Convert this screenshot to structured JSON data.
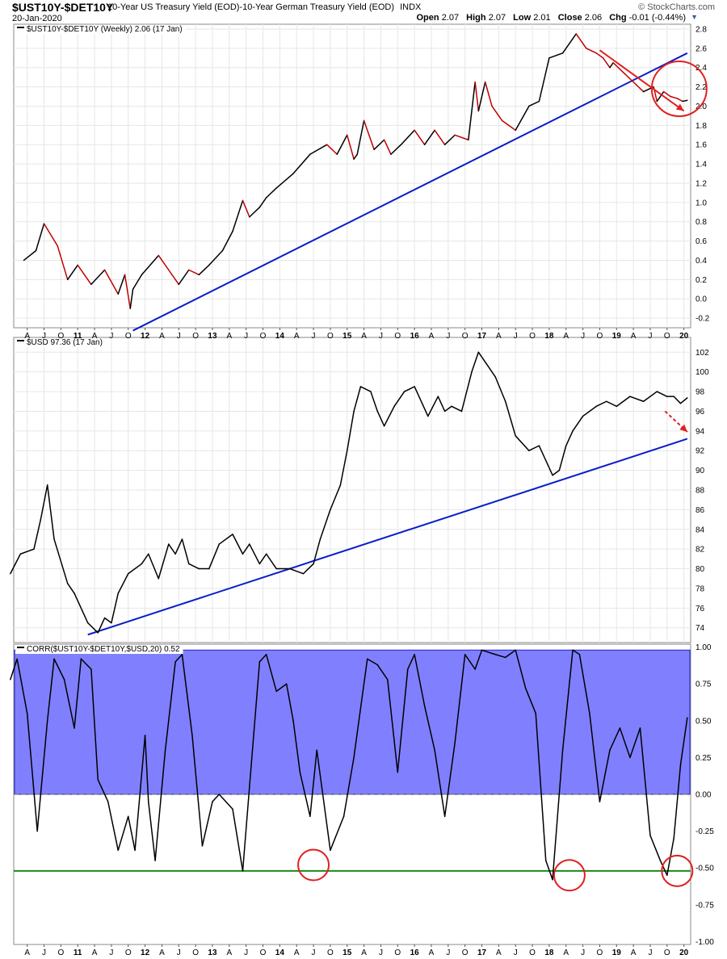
{
  "header": {
    "symbol": "$UST10Y-$DET10Y",
    "description": "10-Year US Treasury Yield (EOD)-10-Year German Treasury Yield (EOD)",
    "exchange": "INDX",
    "date": "20-Jan-2020",
    "credit": "© StockCharts.com",
    "open_label": "Open",
    "open": "2.07",
    "high_label": "High",
    "high": "2.07",
    "low_label": "Low",
    "low": "2.01",
    "close_label": "Close",
    "close": "2.06",
    "chg_label": "Chg",
    "chg": "-0.01 (-0.44%)"
  },
  "colors": {
    "price_line": "#000000",
    "down_segments": "#c00000",
    "trendline": "#0a1ec8",
    "corr_band": "#8080ff",
    "corr_band_border": "#2020d0",
    "support_line": "#1a8a1a",
    "annotation": "#e02020",
    "axis_text": "#000000",
    "grid": "#e6e6e6"
  },
  "chart_data": [
    {
      "type": "line",
      "legend": "$UST10Y-$DET10Y (Weekly) 2.06 (17 Jan)",
      "ylim": [
        -0.3,
        2.85
      ],
      "yticks": [
        -0.2,
        0.0,
        0.2,
        0.4,
        0.6,
        0.8,
        1.0,
        1.2,
        1.4,
        1.6,
        1.8,
        2.0,
        2.2,
        2.4,
        2.6,
        2.8
      ],
      "ytick_labels": [
        "-0.2",
        "0.0",
        "0.2",
        "0.4",
        "0.6",
        "0.8",
        "1.0",
        "1.2",
        "1.4",
        "1.6",
        "1.8",
        "2.0",
        "2.2",
        "2.4",
        "2.6",
        "2.8"
      ],
      "x": [
        2010.2,
        2010.38,
        2010.5,
        2010.7,
        2010.85,
        2011.0,
        2011.2,
        2011.4,
        2011.6,
        2011.7,
        2011.78,
        2011.82,
        2011.95,
        2012.2,
        2012.35,
        2012.5,
        2012.65,
        2012.8,
        2012.95,
        2013.15,
        2013.3,
        2013.45,
        2013.55,
        2013.7,
        2013.8,
        2013.95,
        2014.2,
        2014.45,
        2014.7,
        2014.85,
        2015.0,
        2015.1,
        2015.15,
        2015.25,
        2015.4,
        2015.55,
        2015.65,
        2015.8,
        2016.0,
        2016.15,
        2016.3,
        2016.45,
        2016.6,
        2016.8,
        2016.9,
        2016.95,
        2017.05,
        2017.15,
        2017.3,
        2017.5,
        2017.7,
        2017.85,
        2018.0,
        2018.2,
        2018.4,
        2018.55,
        2018.7,
        2018.8,
        2018.9,
        2018.95,
        2019.1,
        2019.25,
        2019.4,
        2019.55,
        2019.6,
        2019.7,
        2019.8,
        2019.9,
        2019.98,
        2020.05
      ],
      "y": [
        0.4,
        0.5,
        0.78,
        0.55,
        0.2,
        0.35,
        0.15,
        0.3,
        0.05,
        0.25,
        -0.1,
        0.1,
        0.25,
        0.45,
        0.3,
        0.15,
        0.3,
        0.25,
        0.35,
        0.5,
        0.7,
        1.02,
        0.85,
        0.95,
        1.05,
        1.15,
        1.3,
        1.5,
        1.6,
        1.5,
        1.7,
        1.45,
        1.5,
        1.85,
        1.55,
        1.65,
        1.5,
        1.6,
        1.75,
        1.6,
        1.75,
        1.6,
        1.7,
        1.65,
        2.25,
        1.95,
        2.25,
        2.0,
        1.85,
        1.75,
        2.0,
        2.05,
        2.5,
        2.55,
        2.75,
        2.6,
        2.55,
        2.5,
        2.4,
        2.45,
        2.35,
        2.25,
        2.15,
        2.2,
        2.05,
        2.15,
        2.1,
        2.08,
        2.05,
        2.06
      ],
      "trendline": {
        "x": [
          2011.82,
          2020.05
        ],
        "y": [
          -0.33,
          2.55
        ]
      },
      "arrow": {
        "x": [
          2018.75,
          2020.0
        ],
        "y": [
          2.58,
          1.95
        ]
      },
      "circle": {
        "x": 2019.93,
        "y": 2.18
      }
    },
    {
      "type": "line",
      "legend": "$USD 97.36 (17 Jan)",
      "ylim": [
        72.5,
        103.5
      ],
      "yticks": [
        74,
        76,
        78,
        80,
        82,
        84,
        86,
        88,
        90,
        92,
        94,
        96,
        98,
        100,
        102
      ],
      "ytick_labels": [
        "74",
        "76",
        "78",
        "80",
        "82",
        "84",
        "86",
        "88",
        "90",
        "92",
        "94",
        "96",
        "98",
        "100",
        "102"
      ],
      "x": [
        2010.0,
        2010.15,
        2010.35,
        2010.45,
        2010.55,
        2010.65,
        2010.85,
        2010.95,
        2011.15,
        2011.3,
        2011.4,
        2011.5,
        2011.6,
        2011.75,
        2011.95,
        2012.05,
        2012.2,
        2012.35,
        2012.45,
        2012.55,
        2012.65,
        2012.8,
        2012.95,
        2013.1,
        2013.3,
        2013.45,
        2013.55,
        2013.7,
        2013.8,
        2013.95,
        2014.15,
        2014.35,
        2014.5,
        2014.6,
        2014.75,
        2014.9,
        2015.0,
        2015.1,
        2015.2,
        2015.35,
        2015.45,
        2015.55,
        2015.7,
        2015.85,
        2016.0,
        2016.2,
        2016.35,
        2016.45,
        2016.55,
        2016.7,
        2016.85,
        2016.95,
        2017.05,
        2017.2,
        2017.35,
        2017.5,
        2017.7,
        2017.85,
        2018.05,
        2018.15,
        2018.25,
        2018.35,
        2018.5,
        2018.7,
        2018.85,
        2019.0,
        2019.2,
        2019.4,
        2019.6,
        2019.75,
        2019.85,
        2019.95,
        2020.05
      ],
      "y": [
        79.5,
        81.5,
        82.0,
        85.0,
        88.5,
        83.0,
        78.5,
        77.5,
        74.5,
        73.5,
        75.0,
        74.5,
        77.5,
        79.5,
        80.5,
        81.5,
        79.0,
        82.5,
        81.5,
        83.0,
        80.5,
        80.0,
        80.0,
        82.5,
        83.5,
        81.5,
        82.5,
        80.5,
        81.5,
        80.0,
        80.0,
        79.5,
        80.5,
        83.0,
        86.0,
        88.5,
        92.0,
        96.0,
        98.5,
        98.0,
        96.0,
        94.5,
        96.5,
        98.0,
        98.5,
        95.5,
        97.5,
        96.0,
        96.5,
        96.0,
        100.0,
        102.0,
        101.0,
        99.5,
        97.0,
        93.5,
        92.0,
        92.5,
        89.5,
        90.0,
        92.5,
        94.0,
        95.5,
        96.5,
        97.0,
        96.5,
        97.5,
        97.0,
        98.0,
        97.5,
        97.5,
        96.8,
        97.36
      ],
      "trendline": {
        "x": [
          2011.15,
          2020.05
        ],
        "y": [
          73.3,
          93.2
        ]
      },
      "arrow": {
        "x": [
          2019.72,
          2020.05
        ],
        "y": [
          96.0,
          93.9
        ]
      }
    },
    {
      "type": "line",
      "legend": "CORR($UST10Y-$DET10Y,$USD,20) 0.52",
      "ylim": [
        -1.02,
        1.02
      ],
      "yticks": [
        -1.0,
        -0.75,
        -0.5,
        -0.25,
        0.0,
        0.25,
        0.5,
        0.75,
        1.0
      ],
      "ytick_labels": [
        "-1.00",
        "-0.75",
        "-0.50",
        "-0.25",
        "0.00",
        "0.25",
        "0.50",
        "0.75",
        "1.00"
      ],
      "band": [
        0.0,
        0.98
      ],
      "support_level": -0.52,
      "x": [
        2010.0,
        2010.1,
        2010.25,
        2010.4,
        2010.55,
        2010.65,
        2010.8,
        2010.95,
        2011.05,
        2011.2,
        2011.3,
        2011.45,
        2011.6,
        2011.75,
        2011.85,
        2012.0,
        2012.05,
        2012.15,
        2012.3,
        2012.45,
        2012.55,
        2012.7,
        2012.85,
        2013.0,
        2013.1,
        2013.3,
        2013.45,
        2013.55,
        2013.7,
        2013.8,
        2013.95,
        2014.1,
        2014.2,
        2014.3,
        2014.45,
        2014.55,
        2014.75,
        2014.95,
        2015.1,
        2015.3,
        2015.45,
        2015.6,
        2015.75,
        2015.9,
        2016.0,
        2016.15,
        2016.3,
        2016.45,
        2016.6,
        2016.75,
        2016.9,
        2017.0,
        2017.2,
        2017.35,
        2017.5,
        2017.65,
        2017.8,
        2017.95,
        2018.05,
        2018.2,
        2018.35,
        2018.45,
        2018.6,
        2018.75,
        2018.9,
        2019.05,
        2019.2,
        2019.35,
        2019.5,
        2019.65,
        2019.75,
        2019.85,
        2019.95,
        2020.05
      ],
      "y": [
        0.78,
        0.92,
        0.55,
        -0.25,
        0.5,
        0.92,
        0.78,
        0.45,
        0.92,
        0.85,
        0.1,
        -0.05,
        -0.38,
        -0.15,
        -0.38,
        0.4,
        -0.05,
        -0.45,
        0.3,
        0.9,
        0.95,
        0.4,
        -0.35,
        -0.05,
        0.0,
        -0.1,
        -0.52,
        0.05,
        0.9,
        0.95,
        0.7,
        0.75,
        0.5,
        0.15,
        -0.15,
        0.3,
        -0.38,
        -0.15,
        0.25,
        0.92,
        0.88,
        0.78,
        0.15,
        0.85,
        0.95,
        0.6,
        0.3,
        -0.15,
        0.35,
        0.95,
        0.85,
        0.98,
        0.95,
        0.93,
        0.98,
        0.72,
        0.55,
        -0.45,
        -0.58,
        0.3,
        0.98,
        0.95,
        0.55,
        -0.05,
        0.3,
        0.45,
        0.25,
        0.45,
        -0.28,
        -0.45,
        -0.55,
        -0.3,
        0.2,
        0.52
      ],
      "circles": [
        {
          "x": 2014.5,
          "y": -0.48
        },
        {
          "x": 2018.3,
          "y": -0.55
        },
        {
          "x": 2019.9,
          "y": -0.52
        }
      ]
    }
  ],
  "x_axis": {
    "range": [
      2010.05,
      2020.1
    ],
    "ticks": [
      {
        "x": 2010.25,
        "label": "A"
      },
      {
        "x": 2010.5,
        "label": "J"
      },
      {
        "x": 2010.75,
        "label": "O"
      },
      {
        "x": 2011.0,
        "label": "11"
      },
      {
        "x": 2011.25,
        "label": "A"
      },
      {
        "x": 2011.5,
        "label": "J"
      },
      {
        "x": 2011.75,
        "label": "O"
      },
      {
        "x": 2012.0,
        "label": "12"
      },
      {
        "x": 2012.25,
        "label": "A"
      },
      {
        "x": 2012.5,
        "label": "J"
      },
      {
        "x": 2012.75,
        "label": "O"
      },
      {
        "x": 2013.0,
        "label": "13"
      },
      {
        "x": 2013.25,
        "label": "A"
      },
      {
        "x": 2013.5,
        "label": "J"
      },
      {
        "x": 2013.75,
        "label": "O"
      },
      {
        "x": 2014.0,
        "label": "14"
      },
      {
        "x": 2014.25,
        "label": "A"
      },
      {
        "x": 2014.5,
        "label": "J"
      },
      {
        "x": 2014.75,
        "label": "O"
      },
      {
        "x": 2015.0,
        "label": "15"
      },
      {
        "x": 2015.25,
        "label": "A"
      },
      {
        "x": 2015.5,
        "label": "J"
      },
      {
        "x": 2015.75,
        "label": "O"
      },
      {
        "x": 2016.0,
        "label": "16"
      },
      {
        "x": 2016.25,
        "label": "A"
      },
      {
        "x": 2016.5,
        "label": "J"
      },
      {
        "x": 2016.75,
        "label": "O"
      },
      {
        "x": 2017.0,
        "label": "17"
      },
      {
        "x": 2017.25,
        "label": "A"
      },
      {
        "x": 2017.5,
        "label": "J"
      },
      {
        "x": 2017.75,
        "label": "O"
      },
      {
        "x": 2018.0,
        "label": "18"
      },
      {
        "x": 2018.25,
        "label": "A"
      },
      {
        "x": 2018.5,
        "label": "J"
      },
      {
        "x": 2018.75,
        "label": "O"
      },
      {
        "x": 2019.0,
        "label": "19"
      },
      {
        "x": 2019.25,
        "label": "A"
      },
      {
        "x": 2019.5,
        "label": "J"
      },
      {
        "x": 2019.75,
        "label": "O"
      },
      {
        "x": 2020.0,
        "label": "20"
      }
    ]
  }
}
